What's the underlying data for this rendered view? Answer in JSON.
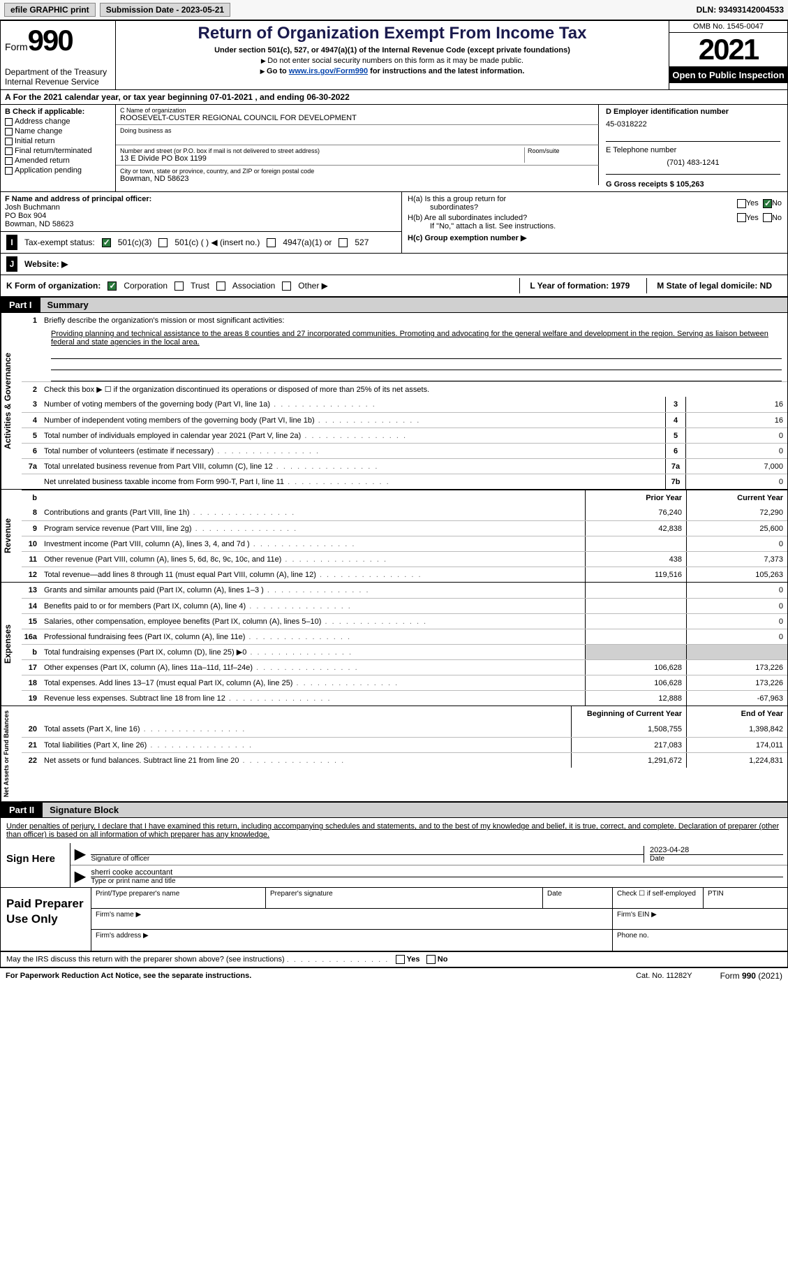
{
  "topbar": {
    "efile_label": "efile GRAPHIC print",
    "submission": "Submission Date - 2023-05-21",
    "dln_label": "DLN: 93493142004533"
  },
  "header": {
    "form_word": "Form",
    "form_num": "990",
    "dept": "Department of the Treasury",
    "irs": "Internal Revenue Service",
    "title": "Return of Organization Exempt From Income Tax",
    "subtitle": "Under section 501(c), 527, or 4947(a)(1) of the Internal Revenue Code (except private foundations)",
    "note1": "Do not enter social security numbers on this form as it may be made public.",
    "note2_pre": "Go to ",
    "note2_link": "www.irs.gov/Form990",
    "note2_post": " for instructions and the latest information.",
    "omb": "OMB No. 1545-0047",
    "year": "2021",
    "open": "Open to Public Inspection"
  },
  "period": "For the 2021 calendar year, or tax year beginning 07-01-2021    , and ending 06-30-2022",
  "colB": {
    "hdr": "B Check if applicable:",
    "opts": [
      "Address change",
      "Name change",
      "Initial return",
      "Final return/terminated",
      "Amended return",
      "Application pending"
    ]
  },
  "colC": {
    "name_lbl": "C Name of organization",
    "name": "ROOSEVELT-CUSTER REGIONAL COUNCIL FOR DEVELOPMENT",
    "dba_lbl": "Doing business as",
    "addr_lbl": "Number and street (or P.O. box if mail is not delivered to street address)",
    "room_lbl": "Room/suite",
    "addr": "13 E Divide PO Box 1199",
    "city_lbl": "City or town, state or province, country, and ZIP or foreign postal code",
    "city": "Bowman, ND  58623"
  },
  "colD": {
    "ein_lbl": "D Employer identification number",
    "ein": "45-0318222",
    "tel_lbl": "E Telephone number",
    "tel": "(701) 483-1241",
    "gross_lbl": "G Gross receipts $ 105,263"
  },
  "officer": {
    "hdr": "F  Name and address of principal officer:",
    "name": "Josh Buchmann",
    "addr1": "PO Box 904",
    "addr2": "Bowman, ND   58623"
  },
  "groupH": {
    "ha": "H(a)  Is this a group return for",
    "ha2": "subordinates?",
    "hb": "H(b)  Are all subordinates included?",
    "hb_note": "If \"No,\" attach a list. See instructions.",
    "hc": "H(c)  Group exemption number ▶",
    "yes": "Yes",
    "no": "No"
  },
  "taxStatus": {
    "label": "Tax-exempt status:",
    "c3": "501(c)(3)",
    "c": "501(c) (   ) ◀ (insert no.)",
    "a1": "4947(a)(1) or",
    "s527": "527"
  },
  "website": {
    "label": "Website: ▶"
  },
  "korg": {
    "label": "K Form of organization:",
    "corp": "Corporation",
    "trust": "Trust",
    "assoc": "Association",
    "other": "Other ▶",
    "year_lbl": "L Year of formation: 1979",
    "state_lbl": "M State of legal domicile: ND"
  },
  "part1": {
    "part": "Part I",
    "title": "Summary",
    "q1": "Briefly describe the organization's mission or most significant activities:",
    "mission": "Providing planning and technical assistance to the areas 8 counties and 27 incorporated communities. Promoting and advocating for the general welfare and development in the region. Serving as liaison between federal and state agencies in the local area.",
    "q2": "Check this box ▶ ☐  if the organization discontinued its operations or disposed of more than 25% of its net assets.",
    "lines_ag": [
      {
        "n": "3",
        "t": "Number of voting members of the governing body (Part VI, line 1a)",
        "b": "3",
        "v": "16"
      },
      {
        "n": "4",
        "t": "Number of independent voting members of the governing body (Part VI, line 1b)",
        "b": "4",
        "v": "16"
      },
      {
        "n": "5",
        "t": "Total number of individuals employed in calendar year 2021 (Part V, line 2a)",
        "b": "5",
        "v": "0"
      },
      {
        "n": "6",
        "t": "Total number of volunteers (estimate if necessary)",
        "b": "6",
        "v": "0"
      },
      {
        "n": "7a",
        "t": "Total unrelated business revenue from Part VIII, column (C), line 12",
        "b": "7a",
        "v": "7,000"
      },
      {
        "n": "",
        "t": "Net unrelated business taxable income from Form 990-T, Part I, line 11",
        "b": "7b",
        "v": "0"
      }
    ],
    "hdr_prior": "Prior Year",
    "hdr_current": "Current Year",
    "lines_rev": [
      {
        "n": "8",
        "t": "Contributions and grants (Part VIII, line 1h)",
        "p": "76,240",
        "c": "72,290"
      },
      {
        "n": "9",
        "t": "Program service revenue (Part VIII, line 2g)",
        "p": "42,838",
        "c": "25,600"
      },
      {
        "n": "10",
        "t": "Investment income (Part VIII, column (A), lines 3, 4, and 7d )",
        "p": "",
        "c": "0"
      },
      {
        "n": "11",
        "t": "Other revenue (Part VIII, column (A), lines 5, 6d, 8c, 9c, 10c, and 11e)",
        "p": "438",
        "c": "7,373"
      },
      {
        "n": "12",
        "t": "Total revenue—add lines 8 through 11 (must equal Part VIII, column (A), line 12)",
        "p": "119,516",
        "c": "105,263"
      }
    ],
    "lines_exp": [
      {
        "n": "13",
        "t": "Grants and similar amounts paid (Part IX, column (A), lines 1–3 )",
        "p": "",
        "c": "0"
      },
      {
        "n": "14",
        "t": "Benefits paid to or for members (Part IX, column (A), line 4)",
        "p": "",
        "c": "0"
      },
      {
        "n": "15",
        "t": "Salaries, other compensation, employee benefits (Part IX, column (A), lines 5–10)",
        "p": "",
        "c": "0"
      },
      {
        "n": "16a",
        "t": "Professional fundraising fees (Part IX, column (A), line 11e)",
        "p": "",
        "c": "0"
      },
      {
        "n": "b",
        "t": "Total fundraising expenses (Part IX, column (D), line 25) ▶0",
        "p": "GRAY",
        "c": "GRAY"
      },
      {
        "n": "17",
        "t": "Other expenses (Part IX, column (A), lines 11a–11d, 11f–24e)",
        "p": "106,628",
        "c": "173,226"
      },
      {
        "n": "18",
        "t": "Total expenses. Add lines 13–17 (must equal Part IX, column (A), line 25)",
        "p": "106,628",
        "c": "173,226"
      },
      {
        "n": "19",
        "t": "Revenue less expenses. Subtract line 18 from line 12",
        "p": "12,888",
        "c": "-67,963"
      }
    ],
    "hdr_begin": "Beginning of Current Year",
    "hdr_end": "End of Year",
    "lines_net": [
      {
        "n": "20",
        "t": "Total assets (Part X, line 16)",
        "p": "1,508,755",
        "c": "1,398,842"
      },
      {
        "n": "21",
        "t": "Total liabilities (Part X, line 26)",
        "p": "217,083",
        "c": "174,011"
      },
      {
        "n": "22",
        "t": "Net assets or fund balances. Subtract line 21 from line 20",
        "p": "1,291,672",
        "c": "1,224,831"
      }
    ]
  },
  "sideLabels": {
    "ag": "Activities & Governance",
    "rev": "Revenue",
    "exp": "Expenses",
    "net": "Net Assets or Fund Balances"
  },
  "part2": {
    "part": "Part II",
    "title": "Signature Block",
    "decl": "Under penalties of perjury, I declare that I have examined this return, including accompanying schedules and statements, and to the best of my knowledge and belief, it is true, correct, and complete. Declaration of preparer (other than officer) is based on all information of which preparer has any knowledge.",
    "sign_here": "Sign Here",
    "sig_officer": "Signature of officer",
    "sig_date": "2023-04-28",
    "date_lbl": "Date",
    "typed_name": "sherri cooke  accountant",
    "typed_lbl": "Type or print name and title",
    "paid": "Paid Preparer Use Only",
    "prep_name": "Print/Type preparer's name",
    "prep_sig": "Preparer's signature",
    "prep_date": "Date",
    "prep_check": "Check ☐ if self-employed",
    "ptin": "PTIN",
    "firm_name": "Firm's name    ▶",
    "firm_ein": "Firm's EIN ▶",
    "firm_addr": "Firm's address ▶",
    "phone": "Phone no."
  },
  "discuss": "May the IRS discuss this return with the preparer shown above? (see instructions)",
  "footer": {
    "left": "For Paperwork Reduction Act Notice, see the separate instructions.",
    "mid": "Cat. No. 11282Y",
    "right": "Form 990 (2021)"
  }
}
